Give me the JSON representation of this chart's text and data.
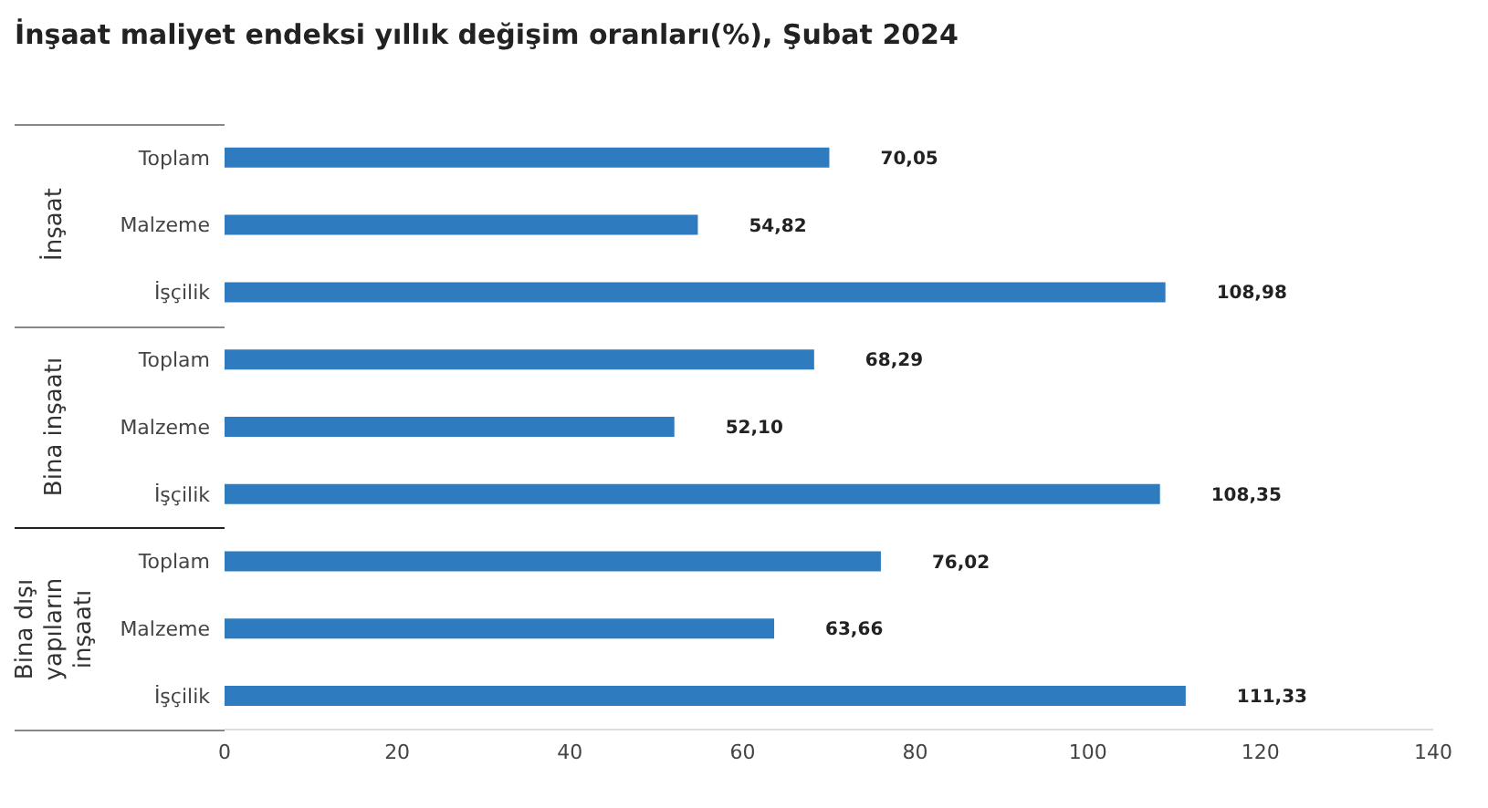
{
  "chart_data": {
    "type": "bar",
    "orientation": "horizontal",
    "title": "İnşaat maliyet endeksi yıllık değişim oranları(%), Şubat 2024",
    "categories": [
      "Toplam",
      "Malzeme",
      "İşçilik",
      "Toplam",
      "Malzeme",
      "İşçilik",
      "Toplam",
      "Malzeme",
      "İşçilik"
    ],
    "values": [
      70.05,
      54.82,
      108.98,
      68.29,
      52.1,
      108.35,
      76.02,
      63.66,
      111.33
    ],
    "value_labels": [
      "70,05",
      "54,82",
      "108,98",
      "68,29",
      "52,10",
      "108,35",
      "76,02",
      "63,66",
      "111,33"
    ],
    "color": "#2f7bbf",
    "xlim": [
      0,
      140
    ],
    "xticks": [
      0,
      20,
      40,
      60,
      80,
      100,
      120,
      140
    ],
    "annotations": [
      "İnşaat",
      "Bina inşaatı",
      "Bina dışı yapıların inşaatı"
    ]
  }
}
